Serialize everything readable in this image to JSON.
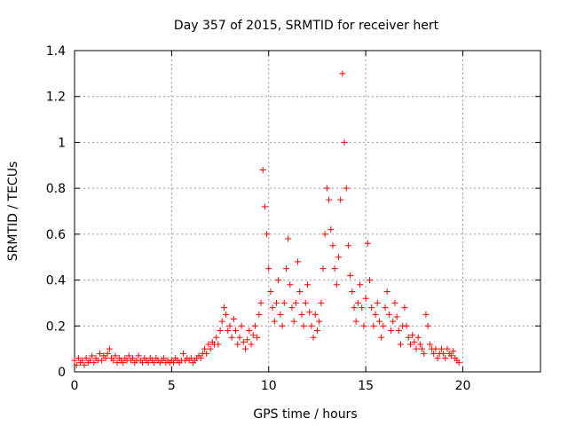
{
  "chart_data": {
    "type": "scatter",
    "title": "Day 357 of 2015, SRMTID for receiver hert",
    "xlabel": "GPS time / hours",
    "ylabel": "SRMTID / TECUs",
    "xlim": [
      0,
      24
    ],
    "ylim": [
      0,
      1.4
    ],
    "xticks": [
      0,
      5,
      10,
      15,
      20
    ],
    "yticks": [
      0,
      0.2,
      0.4,
      0.6,
      0.8,
      1,
      1.2,
      1.4
    ],
    "xtick_labels": [
      "0",
      "5",
      "10",
      "15",
      "20"
    ],
    "ytick_labels": [
      "0",
      "0.2",
      "0.4",
      "0.6",
      "0.8",
      "1",
      "1.2",
      "1.4"
    ],
    "grid": true,
    "marker": "+",
    "color": "#ff0000",
    "series": [
      {
        "points": [
          [
            0.0,
            0.05
          ],
          [
            0.1,
            0.03
          ],
          [
            0.2,
            0.06
          ],
          [
            0.3,
            0.04
          ],
          [
            0.4,
            0.05
          ],
          [
            0.5,
            0.03
          ],
          [
            0.6,
            0.06
          ],
          [
            0.7,
            0.04
          ],
          [
            0.8,
            0.05
          ],
          [
            0.9,
            0.07
          ],
          [
            1.0,
            0.04
          ],
          [
            1.1,
            0.06
          ],
          [
            1.2,
            0.05
          ],
          [
            1.3,
            0.08
          ],
          [
            1.4,
            0.05
          ],
          [
            1.5,
            0.07
          ],
          [
            1.6,
            0.06
          ],
          [
            1.7,
            0.08
          ],
          [
            1.8,
            0.1
          ],
          [
            1.9,
            0.06
          ],
          [
            2.0,
            0.05
          ],
          [
            2.1,
            0.07
          ],
          [
            2.2,
            0.04
          ],
          [
            2.3,
            0.06
          ],
          [
            2.4,
            0.05
          ],
          [
            2.5,
            0.04
          ],
          [
            2.6,
            0.06
          ],
          [
            2.7,
            0.05
          ],
          [
            2.8,
            0.07
          ],
          [
            2.9,
            0.05
          ],
          [
            3.0,
            0.06
          ],
          [
            3.1,
            0.04
          ],
          [
            3.2,
            0.05
          ],
          [
            3.3,
            0.07
          ],
          [
            3.4,
            0.05
          ],
          [
            3.5,
            0.04
          ],
          [
            3.6,
            0.06
          ],
          [
            3.7,
            0.05
          ],
          [
            3.8,
            0.04
          ],
          [
            3.9,
            0.06
          ],
          [
            4.0,
            0.05
          ],
          [
            4.1,
            0.04
          ],
          [
            4.2,
            0.06
          ],
          [
            4.3,
            0.05
          ],
          [
            4.4,
            0.04
          ],
          [
            4.5,
            0.05
          ],
          [
            4.6,
            0.06
          ],
          [
            4.7,
            0.04
          ],
          [
            4.8,
            0.05
          ],
          [
            4.9,
            0.04
          ],
          [
            5.0,
            0.05
          ],
          [
            5.1,
            0.04
          ],
          [
            5.2,
            0.06
          ],
          [
            5.3,
            0.05
          ],
          [
            5.4,
            0.04
          ],
          [
            5.5,
            0.05
          ],
          [
            5.6,
            0.08
          ],
          [
            5.7,
            0.05
          ],
          [
            5.8,
            0.06
          ],
          [
            5.9,
            0.05
          ],
          [
            6.0,
            0.06
          ],
          [
            6.1,
            0.04
          ],
          [
            6.2,
            0.05
          ],
          [
            6.3,
            0.06
          ],
          [
            6.4,
            0.07
          ],
          [
            6.5,
            0.06
          ],
          [
            6.6,
            0.08
          ],
          [
            6.7,
            0.1
          ],
          [
            6.8,
            0.08
          ],
          [
            6.9,
            0.12
          ],
          [
            7.0,
            0.1
          ],
          [
            7.1,
            0.13
          ],
          [
            7.2,
            0.12
          ],
          [
            7.3,
            0.15
          ],
          [
            7.4,
            0.12
          ],
          [
            7.5,
            0.18
          ],
          [
            7.6,
            0.22
          ],
          [
            7.7,
            0.28
          ],
          [
            7.8,
            0.25
          ],
          [
            7.9,
            0.18
          ],
          [
            8.0,
            0.2
          ],
          [
            8.1,
            0.15
          ],
          [
            8.2,
            0.23
          ],
          [
            8.3,
            0.18
          ],
          [
            8.4,
            0.12
          ],
          [
            8.5,
            0.15
          ],
          [
            8.6,
            0.2
          ],
          [
            8.7,
            0.13
          ],
          [
            8.8,
            0.1
          ],
          [
            8.9,
            0.14
          ],
          [
            9.0,
            0.18
          ],
          [
            9.1,
            0.12
          ],
          [
            9.2,
            0.16
          ],
          [
            9.3,
            0.2
          ],
          [
            9.4,
            0.15
          ],
          [
            9.5,
            0.25
          ],
          [
            9.6,
            0.3
          ],
          [
            9.7,
            0.88
          ],
          [
            9.8,
            0.72
          ],
          [
            9.9,
            0.6
          ],
          [
            10.0,
            0.45
          ],
          [
            10.1,
            0.35
          ],
          [
            10.2,
            0.28
          ],
          [
            10.3,
            0.22
          ],
          [
            10.4,
            0.3
          ],
          [
            10.5,
            0.4
          ],
          [
            10.6,
            0.25
          ],
          [
            10.7,
            0.2
          ],
          [
            10.8,
            0.3
          ],
          [
            10.9,
            0.45
          ],
          [
            11.0,
            0.58
          ],
          [
            11.1,
            0.38
          ],
          [
            11.2,
            0.28
          ],
          [
            11.3,
            0.22
          ],
          [
            11.4,
            0.3
          ],
          [
            11.5,
            0.48
          ],
          [
            11.6,
            0.35
          ],
          [
            11.7,
            0.25
          ],
          [
            11.8,
            0.2
          ],
          [
            11.9,
            0.3
          ],
          [
            12.0,
            0.38
          ],
          [
            12.1,
            0.26
          ],
          [
            12.2,
            0.2
          ],
          [
            12.3,
            0.15
          ],
          [
            12.4,
            0.25
          ],
          [
            12.5,
            0.18
          ],
          [
            12.6,
            0.22
          ],
          [
            12.7,
            0.3
          ],
          [
            12.8,
            0.45
          ],
          [
            12.9,
            0.6
          ],
          [
            13.0,
            0.8
          ],
          [
            13.1,
            0.75
          ],
          [
            13.2,
            0.62
          ],
          [
            13.3,
            0.55
          ],
          [
            13.4,
            0.45
          ],
          [
            13.5,
            0.38
          ],
          [
            13.6,
            0.5
          ],
          [
            13.7,
            0.75
          ],
          [
            13.8,
            1.3
          ],
          [
            13.9,
            1.0
          ],
          [
            14.0,
            0.8
          ],
          [
            14.1,
            0.55
          ],
          [
            14.2,
            0.42
          ],
          [
            14.3,
            0.35
          ],
          [
            14.4,
            0.28
          ],
          [
            14.5,
            0.22
          ],
          [
            14.6,
            0.3
          ],
          [
            14.7,
            0.38
          ],
          [
            14.8,
            0.28
          ],
          [
            14.9,
            0.2
          ],
          [
            15.0,
            0.32
          ],
          [
            15.1,
            0.56
          ],
          [
            15.2,
            0.4
          ],
          [
            15.3,
            0.28
          ],
          [
            15.4,
            0.2
          ],
          [
            15.5,
            0.25
          ],
          [
            15.6,
            0.3
          ],
          [
            15.7,
            0.22
          ],
          [
            15.8,
            0.15
          ],
          [
            15.9,
            0.2
          ],
          [
            16.0,
            0.28
          ],
          [
            16.1,
            0.35
          ],
          [
            16.2,
            0.25
          ],
          [
            16.3,
            0.18
          ],
          [
            16.4,
            0.22
          ],
          [
            16.5,
            0.3
          ],
          [
            16.6,
            0.24
          ],
          [
            16.7,
            0.18
          ],
          [
            16.8,
            0.12
          ],
          [
            16.9,
            0.2
          ],
          [
            17.0,
            0.28
          ],
          [
            17.1,
            0.2
          ],
          [
            17.2,
            0.15
          ],
          [
            17.3,
            0.12
          ],
          [
            17.4,
            0.16
          ],
          [
            17.5,
            0.13
          ],
          [
            17.6,
            0.1
          ],
          [
            17.7,
            0.15
          ],
          [
            17.8,
            0.12
          ],
          [
            17.9,
            0.1
          ],
          [
            18.0,
            0.08
          ],
          [
            18.1,
            0.25
          ],
          [
            18.2,
            0.2
          ],
          [
            18.3,
            0.12
          ],
          [
            18.4,
            0.1
          ],
          [
            18.5,
            0.08
          ],
          [
            18.6,
            0.1
          ],
          [
            18.7,
            0.06
          ],
          [
            18.8,
            0.08
          ],
          [
            18.9,
            0.1
          ],
          [
            19.0,
            0.08
          ],
          [
            19.1,
            0.06
          ],
          [
            19.2,
            0.1
          ],
          [
            19.3,
            0.08
          ],
          [
            19.4,
            0.07
          ],
          [
            19.5,
            0.09
          ],
          [
            19.6,
            0.06
          ],
          [
            19.7,
            0.05
          ],
          [
            19.8,
            0.04
          ]
        ]
      }
    ]
  }
}
